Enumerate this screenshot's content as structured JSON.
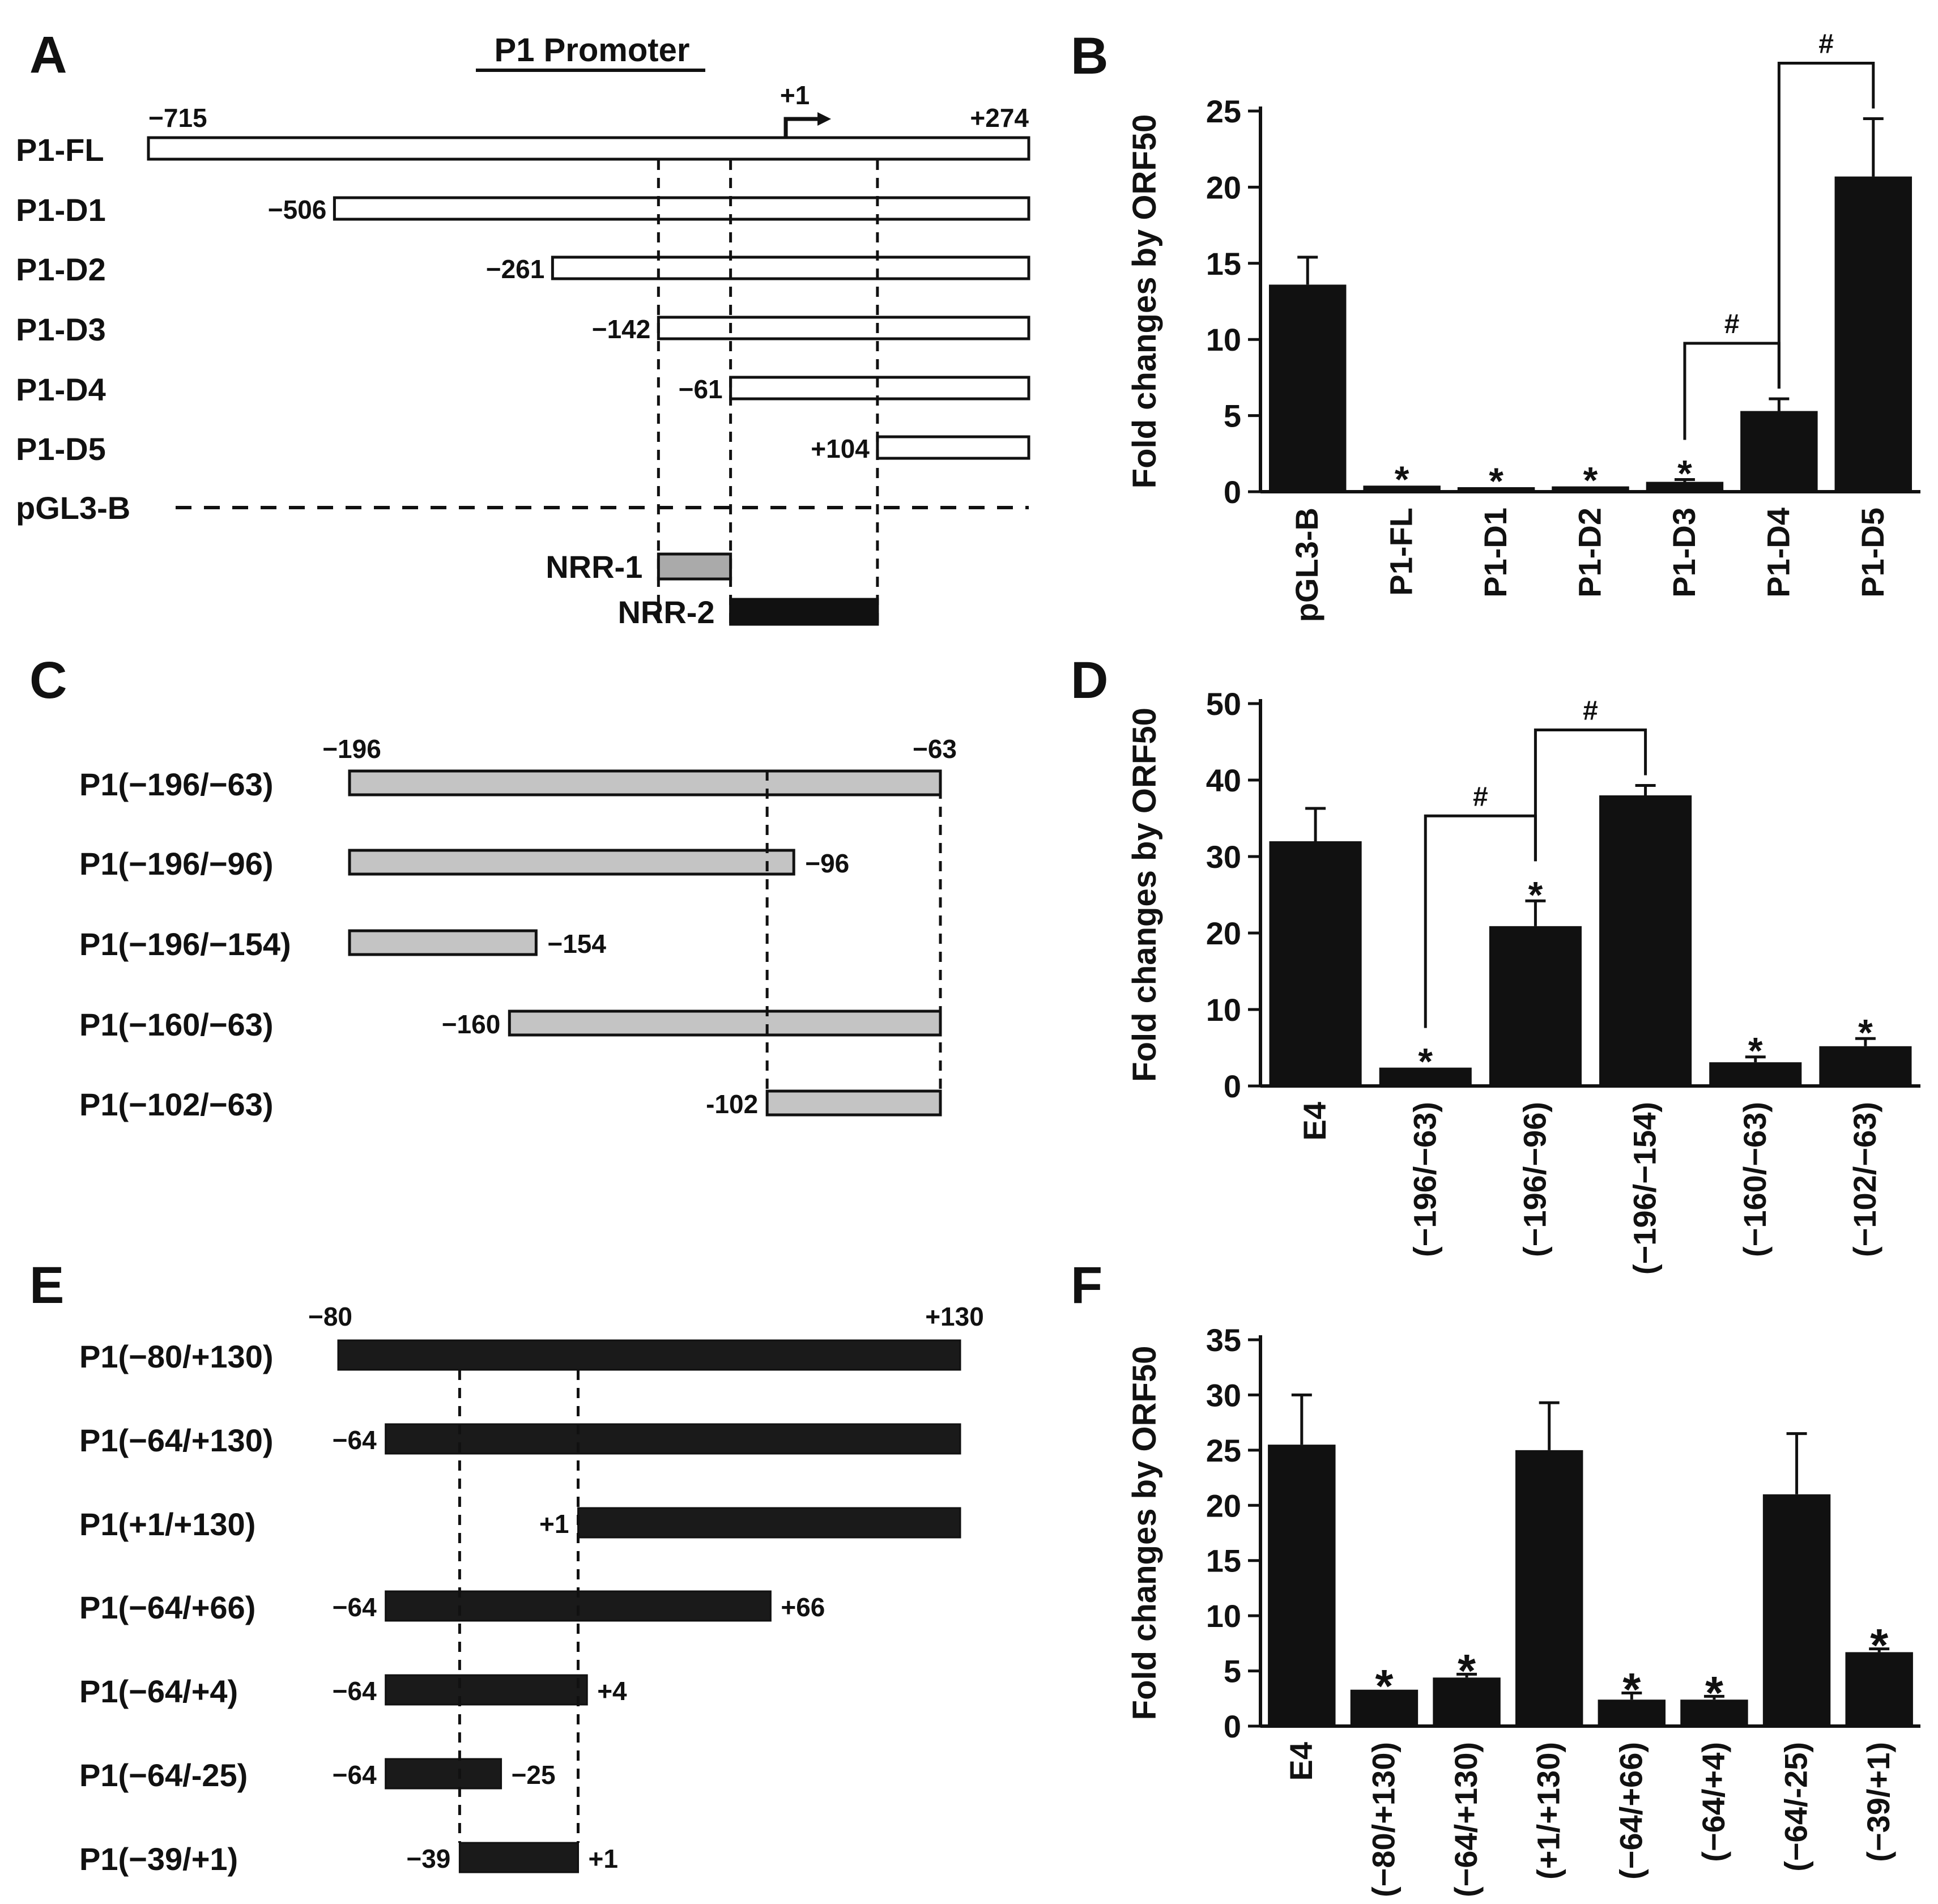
{
  "figure": {
    "panelA": {
      "letter": "A",
      "title": "P1 Promoter",
      "tss_label": "+1",
      "coords": [
        -715,
        274
      ],
      "constructs": [
        {
          "label": "P1-FL",
          "start": -715,
          "end": 274,
          "start_label": "−715",
          "end_label": "+274"
        },
        {
          "label": "P1-D1",
          "start": -506,
          "end": 274,
          "start_label": "−506"
        },
        {
          "label": "P1-D2",
          "start": -261,
          "end": 274,
          "start_label": "−261"
        },
        {
          "label": "P1-D3",
          "start": -142,
          "end": 274,
          "start_label": "−142"
        },
        {
          "label": "P1-D4",
          "start": -61,
          "end": 274,
          "start_label": "−61"
        },
        {
          "label": "P1-D5",
          "start": 104,
          "end": 274,
          "start_label": "+104"
        }
      ],
      "vector_label": "pGL3-B",
      "regions": [
        {
          "label": "NRR-1",
          "start": -142,
          "end": -61,
          "color": "#aaaaaa"
        },
        {
          "label": "NRR-2",
          "start": -61,
          "end": 104,
          "color": "#111111"
        }
      ]
    },
    "panelC": {
      "letter": "C",
      "coords": [
        -196,
        -63
      ],
      "constructs": [
        {
          "label": "P1(−196/−63)",
          "start": -196,
          "end": -63,
          "start_label": "−196",
          "end_label": "−63",
          "label_pos": "above"
        },
        {
          "label": "P1(−196/−96)",
          "start": -196,
          "end": -96,
          "end_label": "−96"
        },
        {
          "label": "P1(−196/−154)",
          "start": -196,
          "end": -154,
          "end_label": "−154"
        },
        {
          "label": "P1(−160/−63)",
          "start": -160,
          "end": -63,
          "start_label": "−160"
        },
        {
          "label": "P1(−102/−63)",
          "start": -102,
          "end": -63,
          "start_label": "-102"
        }
      ]
    },
    "panelE": {
      "letter": "E",
      "coords": [
        -80,
        130
      ],
      "constructs": [
        {
          "label": "P1(−80/+130)",
          "start": -80,
          "end": 130,
          "start_label": "−80",
          "end_label": "+130",
          "label_pos": "above"
        },
        {
          "label": "P1(−64/+130)",
          "start": -64,
          "end": 130,
          "start_label": "−64"
        },
        {
          "label": "P1(+1/+130)",
          "start": 1,
          "end": 130,
          "start_label": "+1"
        },
        {
          "label": "P1(−64/+66)",
          "start": -64,
          "end": 66,
          "start_label": "−64",
          "end_label": "+66"
        },
        {
          "label": "P1(−64/+4)",
          "start": -64,
          "end": 4,
          "start_label": "−64",
          "end_label": "+4"
        },
        {
          "label": "P1(−64/-25)",
          "start": -64,
          "end": -25,
          "start_label": "−64",
          "end_label": "−25"
        },
        {
          "label": "P1(−39/+1)",
          "start": -39,
          "end": 1,
          "start_label": "−39",
          "end_label": "+1"
        }
      ]
    }
  },
  "chart_data": [
    {
      "panel": "B",
      "type": "bar",
      "ylabel": "Fold changes by ORF50",
      "ylim": [
        0,
        25
      ],
      "yticks": [
        0,
        5,
        10,
        15,
        20,
        25
      ],
      "categories": [
        "pGL3-B",
        "P1-FL",
        "P1-D1",
        "P1-D2",
        "P1-D3",
        "P1-D4",
        "P1-D5"
      ],
      "values": [
        13.6,
        0.4,
        0.3,
        0.35,
        0.65,
        5.3,
        20.7
      ],
      "errors": [
        1.8,
        0,
        0,
        0,
        0.15,
        0.8,
        3.8
      ],
      "stars": [
        false,
        true,
        true,
        true,
        true,
        false,
        false
      ],
      "brackets": [
        {
          "from": 4,
          "to": 5,
          "label": "#"
        },
        {
          "from": 5,
          "to": 6,
          "label": "#"
        }
      ],
      "star_symbol": "*"
    },
    {
      "panel": "D",
      "type": "bar",
      "ylabel": "Fold changes by ORF50",
      "ylim": [
        0,
        50
      ],
      "yticks": [
        0,
        10,
        20,
        30,
        40,
        50
      ],
      "categories": [
        "E4",
        "(−196/−63)",
        "(−196/−96)",
        "(−196/−154)",
        "(−160/−63)",
        "(−102/−63)"
      ],
      "values": [
        32.0,
        2.4,
        20.9,
        38.0,
        3.1,
        5.2
      ],
      "errors": [
        4.3,
        0,
        3.3,
        1.3,
        0.7,
        1.0
      ],
      "stars": [
        false,
        true,
        true,
        false,
        true,
        true
      ],
      "brackets": [
        {
          "from": 1,
          "to": 2,
          "label": "#"
        },
        {
          "from": 2,
          "to": 3,
          "label": "#"
        }
      ],
      "star_symbol": "*"
    },
    {
      "panel": "F",
      "type": "bar",
      "ylabel": "Fold changes by ORF50",
      "ylim": [
        0,
        35
      ],
      "yticks": [
        0,
        5,
        10,
        15,
        20,
        25,
        30,
        35
      ],
      "categories": [
        "E4",
        "(−80/+130)",
        "(−64/+130)",
        "(+1/+130)",
        "(−64/+66)",
        "(−64/+4)",
        "(−64/-25)",
        "(−39/+1)"
      ],
      "values": [
        25.5,
        3.3,
        4.4,
        25.0,
        2.4,
        2.4,
        21.0,
        6.7
      ],
      "errors": [
        4.5,
        0,
        0.3,
        4.3,
        0.6,
        0.3,
        5.5,
        0.3
      ],
      "stars": [
        false,
        true,
        true,
        false,
        true,
        true,
        false,
        true
      ],
      "brackets": [],
      "star_symbol": "*"
    }
  ]
}
